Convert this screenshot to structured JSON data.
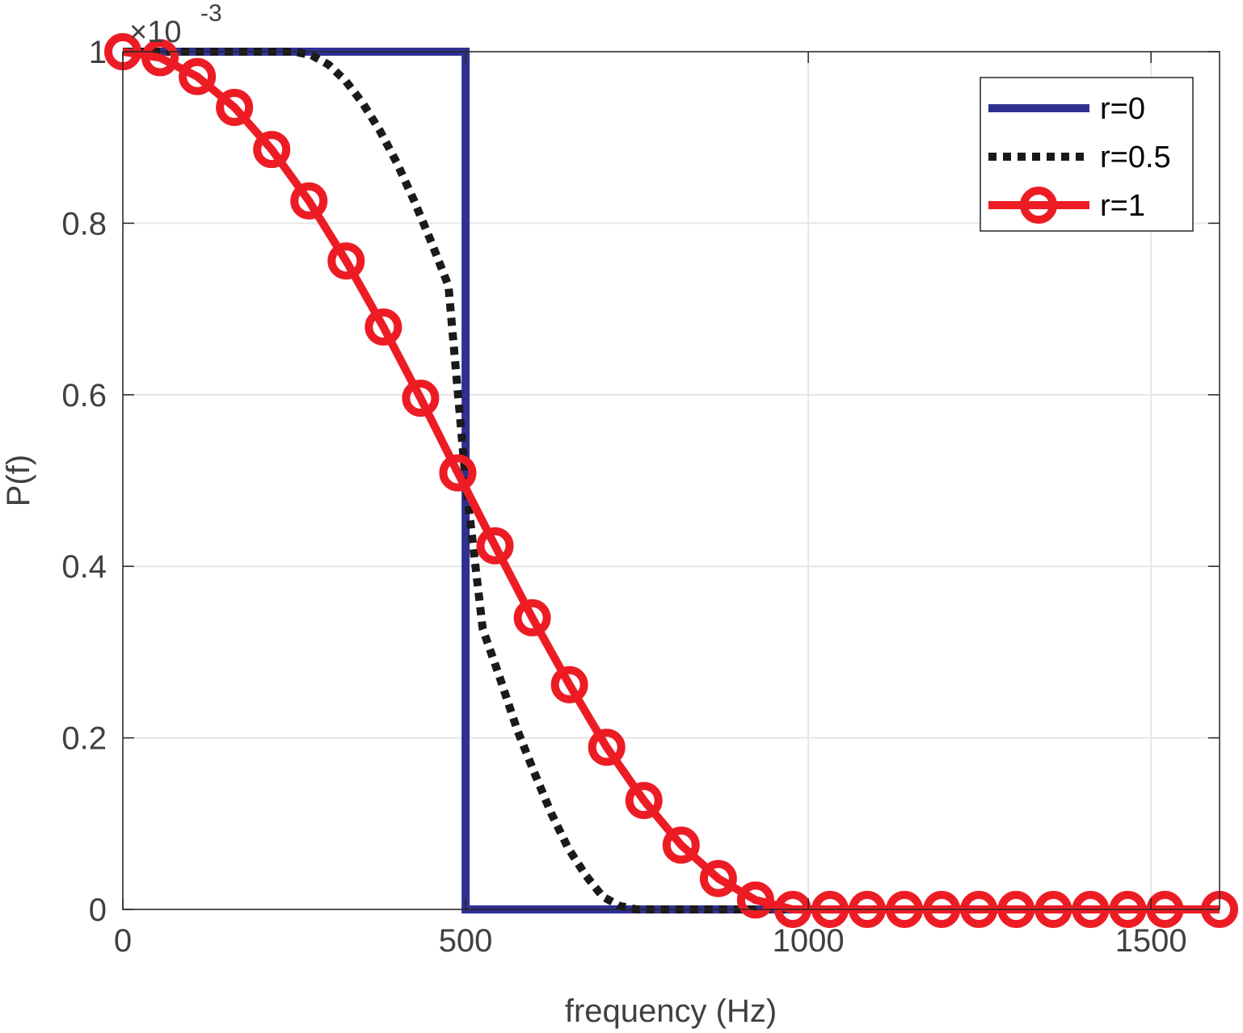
{
  "chart_data": {
    "type": "line",
    "xlabel": "frequency (Hz)",
    "ylabel": "P(f)",
    "y_multiplier": {
      "base": "×10",
      "exponent": "-3"
    },
    "xlim": [
      0,
      1600
    ],
    "ylim": [
      0,
      1.0
    ],
    "xticks": [
      0,
      500,
      1000,
      1500
    ],
    "xtick_labels": [
      "0",
      "500",
      "1000",
      "1500"
    ],
    "yticks": [
      0,
      0.2,
      0.4,
      0.6,
      0.8,
      1.0
    ],
    "ytick_labels": [
      "0",
      "0.2",
      "0.4",
      "0.6",
      "0.8",
      "1"
    ],
    "grid": true,
    "legend_position": "top-right",
    "series": [
      {
        "name": "r=0",
        "color": "#2e3192",
        "style": "solid",
        "x": [
          0,
          500,
          500,
          1600
        ],
        "y": [
          1.0,
          1.0,
          0.0,
          0.0
        ]
      },
      {
        "name": "r=0.5",
        "color": "#1a1a1a",
        "style": "dotted",
        "x": [
          0,
          250,
          275,
          300,
          325,
          350,
          375,
          400,
          425,
          450,
          475,
          500,
          525,
          550,
          575,
          600,
          625,
          650,
          675,
          700,
          725,
          750,
          1600
        ],
        "y": [
          1.0,
          1.0,
          0.996,
          0.985,
          0.966,
          0.94,
          0.908,
          0.87,
          0.826,
          0.778,
          0.727,
          0.5,
          0.327,
          0.27,
          0.21,
          0.16,
          0.112,
          0.071,
          0.04,
          0.015,
          0.004,
          0.0,
          0.0
        ]
      },
      {
        "name": "r=1",
        "color": "#ed1c24",
        "style": "solid",
        "marker": "circle",
        "x": [
          0,
          54.3,
          108.6,
          162.9,
          217.2,
          271.5,
          325.8,
          380.1,
          434.4,
          488.7,
          543,
          597.3,
          651.6,
          705.9,
          760.2,
          814.5,
          868.8,
          923.1,
          977.4,
          1031.7,
          1086,
          1140.3,
          1194.6,
          1248.9,
          1303.2,
          1357.5,
          1411.8,
          1466.1,
          1520.4,
          1600
        ],
        "y": [
          1.0,
          0.993,
          0.971,
          0.935,
          0.886,
          0.826,
          0.756,
          0.679,
          0.596,
          0.509,
          0.424,
          0.34,
          0.262,
          0.189,
          0.127,
          0.075,
          0.036,
          0.011,
          0.0,
          0.0,
          0.0,
          0.0,
          0.0,
          0.0,
          0.0,
          0.0,
          0.0,
          0.0,
          0.0,
          0.0
        ]
      }
    ]
  }
}
